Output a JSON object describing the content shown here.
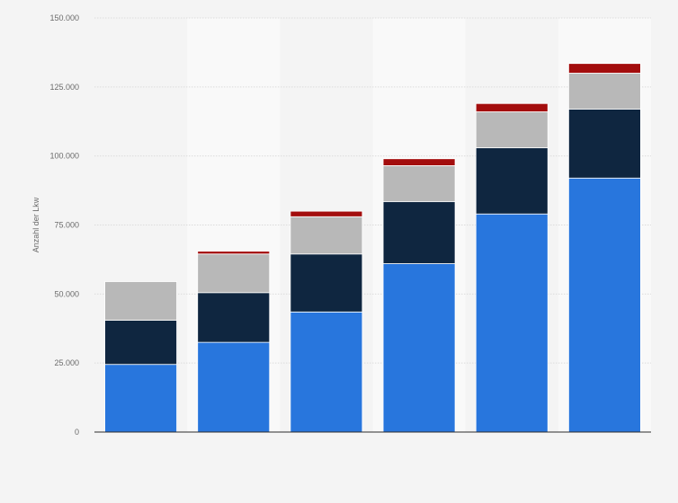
{
  "colors": {
    "background": "#f4f4f4",
    "band": "#f9f9f9",
    "grid": "#dcdcdc",
    "axis": "#2b2b2b"
  },
  "chart_data": {
    "type": "bar",
    "stacked": true,
    "title": "",
    "xlabel": "",
    "ylabel": "Anzahl der Lkw",
    "ylim": [
      0,
      150000
    ],
    "yticks": [
      0,
      25000,
      50000,
      75000,
      100000,
      125000,
      150000
    ],
    "ytick_labels": [
      "0",
      "25.000",
      "50.000",
      "75.000",
      "100.000",
      "125.000",
      "150.000"
    ],
    "categories": [
      "",
      "",
      "",
      "",
      "",
      ""
    ],
    "grid": true,
    "legend": "none",
    "series": [
      {
        "color": "#2876dd",
        "values": [
          24500,
          32500,
          43500,
          61000,
          79000,
          92000
        ]
      },
      {
        "color": "#0f2640",
        "values": [
          16000,
          18000,
          21000,
          22500,
          24000,
          25000
        ]
      },
      {
        "color": "#b8b8b8",
        "values": [
          14000,
          14000,
          13500,
          13000,
          13000,
          13000
        ]
      },
      {
        "color": "#a30d0d",
        "values": [
          0,
          1000,
          2000,
          2500,
          3000,
          3500
        ]
      }
    ]
  }
}
